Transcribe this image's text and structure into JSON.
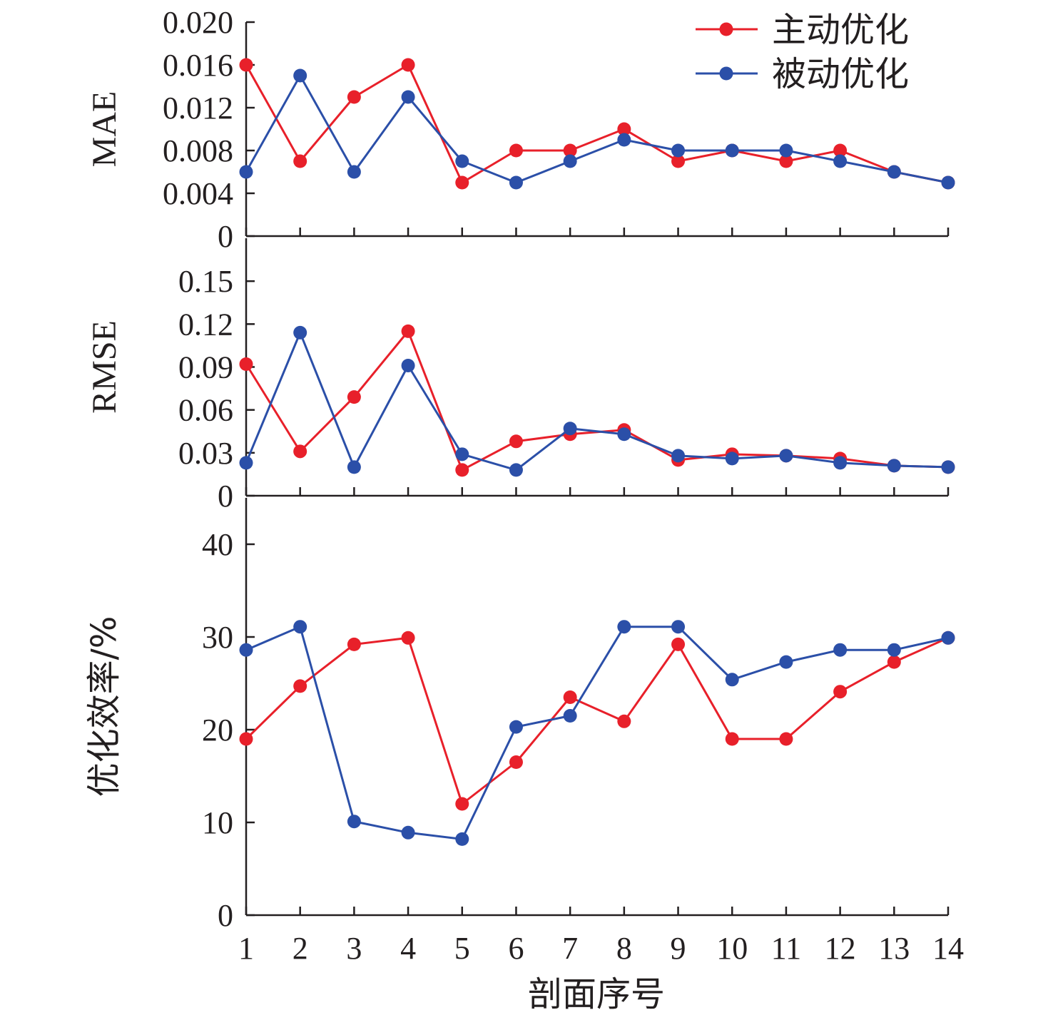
{
  "chart_data": {
    "type": "line",
    "xlabel": "剖面序号",
    "x": [
      1,
      2,
      3,
      4,
      5,
      6,
      7,
      8,
      9,
      10,
      11,
      12,
      13,
      14
    ],
    "x_tick_labels": [
      "1",
      "2",
      "3",
      "4",
      "5",
      "6",
      "7",
      "8",
      "9",
      "10",
      "11",
      "12",
      "13",
      "14"
    ],
    "legend": {
      "position": "top-right",
      "entries": [
        {
          "label": "主动优化",
          "color": "#e8202a"
        },
        {
          "label": "被动优化",
          "color": "#2b4fa8"
        }
      ]
    },
    "panels": [
      {
        "ylabel": "MAE",
        "ylim": [
          0,
          0.02
        ],
        "y_tick_labels": [
          "0",
          "0.004",
          "0.008",
          "0.012",
          "0.016",
          "0.020"
        ],
        "y_ticks": [
          0,
          0.004,
          0.008,
          0.012,
          0.016,
          0.02
        ],
        "series": [
          {
            "name": "主动优化",
            "color": "#e8202a",
            "values": [
              0.016,
              0.007,
              0.013,
              0.016,
              0.005,
              0.008,
              0.008,
              0.01,
              0.007,
              0.008,
              0.007,
              0.008,
              0.006,
              0.005
            ]
          },
          {
            "name": "被动优化",
            "color": "#2b4fa8",
            "values": [
              0.006,
              0.015,
              0.006,
              0.013,
              0.007,
              0.005,
              0.007,
              0.009,
              0.008,
              0.008,
              0.008,
              0.007,
              0.006,
              0.005
            ]
          }
        ]
      },
      {
        "ylabel": "RMSE",
        "ylim": [
          0,
          0.18
        ],
        "y_tick_labels": [
          "0",
          "0.03",
          "0.06",
          "0.09",
          "0.12",
          "0.15"
        ],
        "y_ticks": [
          0,
          0.03,
          0.06,
          0.09,
          0.12,
          0.15
        ],
        "series": [
          {
            "name": "主动优化",
            "color": "#e8202a",
            "values": [
              0.092,
              0.031,
              0.069,
              0.115,
              0.018,
              0.038,
              0.043,
              0.046,
              0.025,
              0.029,
              0.028,
              0.026,
              0.021,
              0.02
            ]
          },
          {
            "name": "被动优化",
            "color": "#2b4fa8",
            "values": [
              0.023,
              0.114,
              0.02,
              0.091,
              0.029,
              0.018,
              0.047,
              0.043,
              0.028,
              0.026,
              0.028,
              0.023,
              0.021,
              0.02
            ]
          }
        ]
      },
      {
        "ylabel": "优化效率/%",
        "ylim": [
          0,
          45
        ],
        "y_tick_labels": [
          "0",
          "10",
          "20",
          "30",
          "40"
        ],
        "y_ticks": [
          0,
          10,
          20,
          30,
          40
        ],
        "series": [
          {
            "name": "主动优化",
            "color": "#e8202a",
            "values": [
              19.0,
              24.7,
              29.2,
              29.9,
              12.0,
              16.5,
              23.5,
              20.9,
              29.2,
              19.0,
              19.0,
              24.1,
              27.3,
              29.9
            ]
          },
          {
            "name": "被动优化",
            "color": "#2b4fa8",
            "values": [
              28.6,
              31.1,
              10.1,
              8.9,
              8.2,
              20.3,
              21.5,
              31.1,
              31.1,
              25.4,
              27.3,
              28.6,
              28.6,
              29.9
            ]
          }
        ]
      }
    ]
  }
}
